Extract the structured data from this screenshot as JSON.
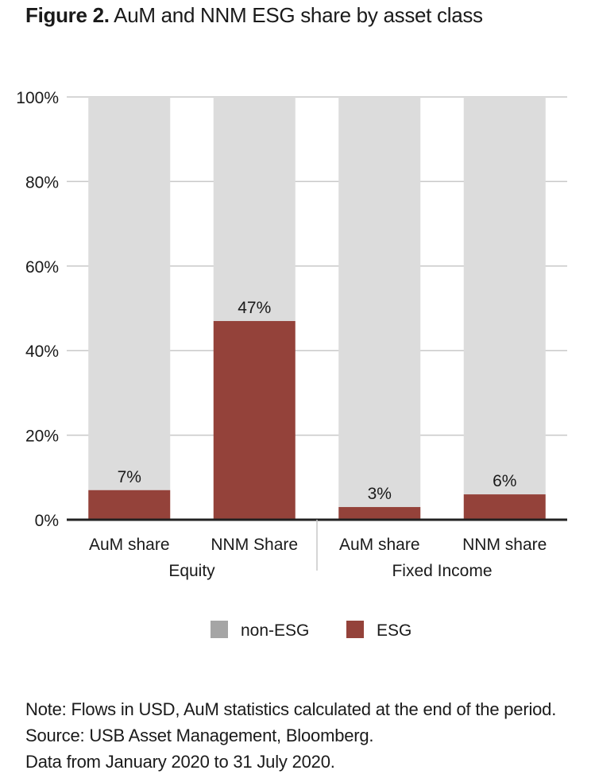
{
  "title": {
    "figure": "Figure 2.",
    "text": "AuM and NNM ESG share by asset class"
  },
  "colors": {
    "esg": "#94423a",
    "non_esg": "#dcdcdc",
    "grid": "#c8c8c8",
    "axis": "#222222",
    "text": "#1a1a1a"
  },
  "chart_data": {
    "type": "bar",
    "stacked": true,
    "percent": true,
    "categories": [
      "AuM share",
      "NNM Share",
      "AuM share",
      "NNM share"
    ],
    "groups": [
      {
        "label": "Equity",
        "categories": [
          0,
          1
        ]
      },
      {
        "label": "Fixed Income",
        "categories": [
          2,
          3
        ]
      }
    ],
    "series": [
      {
        "name": "ESG",
        "values": [
          7,
          47,
          3,
          6
        ],
        "labels": [
          "7%",
          "47%",
          "3%",
          "6%"
        ]
      },
      {
        "name": "non-ESG",
        "values": [
          93,
          53,
          97,
          94
        ]
      }
    ],
    "ylim": [
      0,
      100
    ],
    "yticks": [
      "0%",
      "20%",
      "40%",
      "60%",
      "80%",
      "100%"
    ],
    "legend": {
      "position": "bottom",
      "entries": [
        "non-ESG",
        "ESG"
      ]
    },
    "grid": true
  },
  "notes": [
    "Note: Flows in USD, AuM statistics calculated at the end of the period.",
    "Source: USB Asset Management, Bloomberg.",
    "Data from January 2020 to 31 July 2020."
  ]
}
